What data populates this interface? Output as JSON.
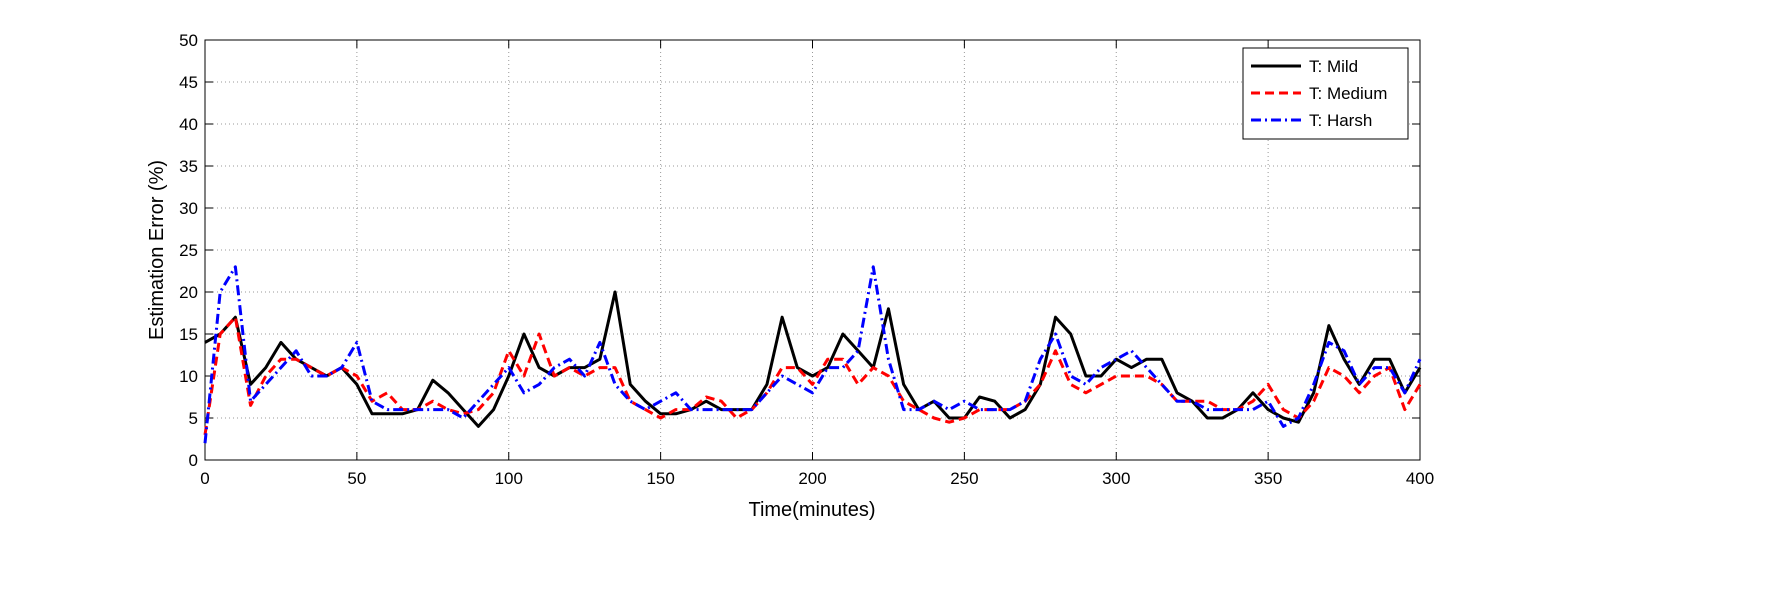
{
  "chart_data": {
    "type": "line",
    "xlabel": "Time(minutes)",
    "ylabel": "Estimation Error (%)",
    "x": [
      0,
      5,
      10,
      15,
      20,
      25,
      30,
      35,
      40,
      45,
      50,
      55,
      60,
      65,
      70,
      75,
      80,
      85,
      90,
      95,
      100,
      105,
      110,
      115,
      120,
      125,
      130,
      135,
      140,
      145,
      150,
      155,
      160,
      165,
      170,
      175,
      180,
      185,
      190,
      195,
      200,
      205,
      210,
      215,
      220,
      225,
      230,
      235,
      240,
      245,
      250,
      255,
      260,
      265,
      270,
      275,
      280,
      285,
      290,
      295,
      300,
      305,
      310,
      315,
      320,
      325,
      330,
      335,
      340,
      345,
      350,
      355,
      360,
      365,
      370,
      375,
      380,
      385,
      390,
      395,
      400
    ],
    "series": [
      {
        "name": "T: Mild",
        "color": "#000000",
        "linestyle": "solid",
        "values": [
          14,
          15,
          17,
          9,
          11,
          14,
          12,
          11,
          10,
          11,
          9,
          5.5,
          5.5,
          5.5,
          6,
          9.5,
          8,
          6,
          4,
          6,
          10,
          15,
          11,
          10,
          11,
          11,
          12,
          20,
          9,
          7,
          5.5,
          5.5,
          6,
          7,
          6,
          6,
          6,
          9,
          17,
          11,
          10,
          11,
          15,
          13,
          11,
          18,
          9,
          6,
          7,
          5,
          5,
          7.5,
          7,
          5,
          6,
          9,
          17,
          15,
          10,
          10,
          12,
          11,
          12,
          12,
          8,
          7,
          5,
          5,
          6,
          8,
          6,
          5,
          4.5,
          8,
          16,
          12,
          9,
          12,
          12,
          8,
          11
        ]
      },
      {
        "name": "T: Medium",
        "color": "#ff0000",
        "linestyle": "dashed",
        "values": [
          3,
          15,
          17,
          6.5,
          10,
          12,
          12,
          11,
          10,
          11,
          10,
          7,
          8,
          6,
          6,
          7,
          6,
          5.5,
          6,
          8,
          13,
          10,
          15,
          10,
          11,
          10,
          11,
          11,
          7,
          6,
          5,
          6,
          6,
          7.5,
          7,
          5,
          6,
          8,
          11,
          11,
          9,
          12,
          12,
          9,
          11,
          10,
          7,
          6,
          5,
          4.5,
          5,
          6,
          6,
          6,
          7,
          9,
          13,
          9,
          8,
          9,
          10,
          10,
          10,
          9,
          7,
          7,
          7,
          6,
          6,
          7,
          9,
          6,
          5,
          7,
          11,
          10,
          8,
          10,
          11,
          6,
          9
        ]
      },
      {
        "name": "T: Harsh",
        "color": "#0000ff",
        "linestyle": "dashdot",
        "values": [
          2,
          20,
          23,
          7,
          9,
          11,
          13,
          10,
          10,
          11,
          14,
          7,
          6,
          6,
          6,
          6,
          6,
          5,
          7,
          9,
          11,
          8,
          9,
          11,
          12,
          10,
          14,
          9,
          7,
          6,
          7,
          8,
          6,
          6,
          6,
          6,
          6,
          8,
          10,
          9,
          8,
          11,
          11,
          13,
          23,
          12,
          6,
          6,
          7,
          6,
          7,
          6,
          6,
          6,
          7,
          12,
          15,
          10,
          9,
          11,
          12,
          13,
          11,
          9,
          7,
          7,
          6,
          6,
          6,
          6,
          7,
          4,
          5,
          9,
          14,
          13,
          9,
          11,
          11,
          8,
          12
        ]
      }
    ],
    "xlim": [
      0,
      400
    ],
    "xticks": [
      0,
      50,
      100,
      150,
      200,
      250,
      300,
      350,
      400
    ],
    "ylim": [
      0,
      50
    ],
    "yticks": [
      0,
      5,
      10,
      15,
      20,
      25,
      30,
      35,
      40,
      45,
      50
    ],
    "grid": true,
    "legend": "top-right"
  }
}
